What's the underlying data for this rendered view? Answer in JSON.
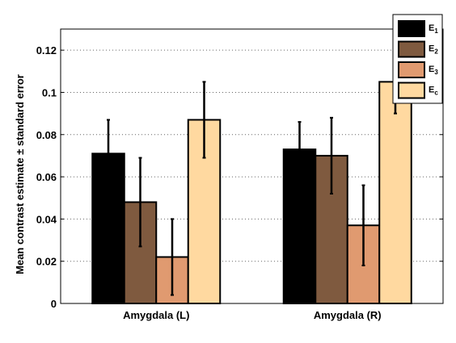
{
  "chart_data": {
    "type": "bar",
    "categories": [
      "Amygdala (L)",
      "Amygdala (R)"
    ],
    "ylabel": "Mean contrast estimate ± standard error",
    "xlabel": "",
    "ylim": [
      0,
      0.13
    ],
    "yticks": [
      0,
      0.02,
      0.04,
      0.06,
      0.08,
      0.1,
      0.12
    ],
    "ytick_labels": [
      "0",
      "0.02",
      "0.04",
      "0.06",
      "0.08",
      "0.1",
      "0.12"
    ],
    "grid": "horizontal dotted",
    "legend_position": "top-right",
    "series": [
      {
        "name": "E",
        "sub": "1",
        "color": "#000000",
        "values": [
          0.071,
          0.073
        ],
        "errors": [
          0.016,
          0.013
        ]
      },
      {
        "name": "E",
        "sub": "2",
        "color": "#7f5a3f",
        "values": [
          0.048,
          0.07
        ],
        "errors": [
          0.021,
          0.018
        ]
      },
      {
        "name": "E",
        "sub": "3",
        "color": "#e09a70",
        "values": [
          0.022,
          0.037
        ],
        "errors": [
          0.018,
          0.019
        ]
      },
      {
        "name": "E",
        "sub": "c",
        "color": "#ffd9a0",
        "values": [
          0.087,
          0.105
        ],
        "errors": [
          0.018,
          0.015
        ]
      }
    ]
  }
}
